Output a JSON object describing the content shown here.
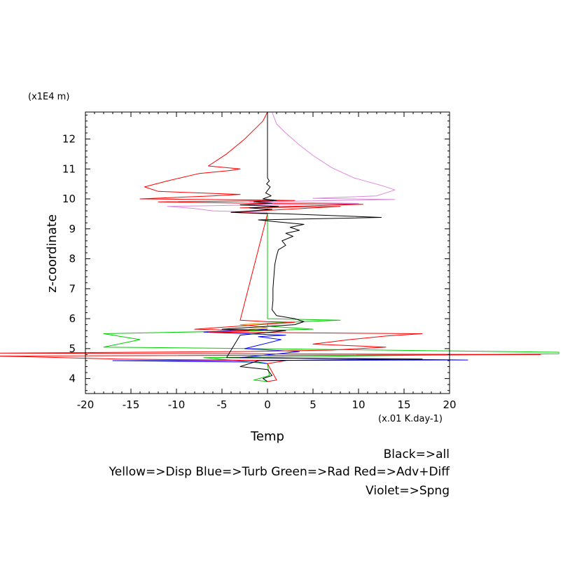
{
  "chart_data": {
    "type": "line",
    "title": "",
    "xlabel": "Temp",
    "ylabel": "z-coordinate",
    "x_unit_label": "(x.01 K.day-1)",
    "y_unit_label": "(x1E4 m)",
    "xlim": [
      -20,
      20
    ],
    "ylim": [
      3.5,
      12.9
    ],
    "x_ticks": [
      -20,
      -15,
      -10,
      -5,
      0,
      5,
      10,
      15,
      20
    ],
    "y_ticks": [
      4,
      5,
      6,
      7,
      8,
      9,
      10,
      11,
      12
    ],
    "grid": false,
    "legend_lines": [
      "Black=>all",
      "Yellow=>Disp Blue=>Turb Green=>Rad Red=>Adv+Diff",
      "Violet=>Spng"
    ],
    "series": [
      {
        "color": "#000000",
        "points": [
          [
            0,
            12.9
          ],
          [
            0,
            10.7
          ],
          [
            0.2,
            10.6
          ],
          [
            -0.1,
            10.5
          ],
          [
            0.3,
            10.4
          ],
          [
            -0.2,
            10.2
          ],
          [
            0.4,
            10.1
          ],
          [
            -0.5,
            10.0
          ],
          [
            1.0,
            9.95
          ],
          [
            -1.5,
            9.9
          ],
          [
            0.5,
            9.85
          ],
          [
            -3.0,
            9.8
          ],
          [
            1.2,
            9.75
          ],
          [
            -2.0,
            9.7
          ],
          [
            0.5,
            9.65
          ],
          [
            -4.0,
            9.55
          ],
          [
            2.0,
            9.5
          ],
          [
            12.5,
            9.38
          ],
          [
            -1.0,
            9.3
          ],
          [
            0.5,
            9.25
          ],
          [
            4.0,
            9.15
          ],
          [
            2.5,
            9.05
          ],
          [
            3.5,
            8.95
          ],
          [
            2.0,
            8.85
          ],
          [
            2.8,
            8.75
          ],
          [
            1.6,
            8.6
          ],
          [
            2.0,
            8.45
          ],
          [
            1.2,
            8.3
          ],
          [
            1.0,
            8.1
          ],
          [
            0.8,
            7.8
          ],
          [
            0.7,
            7.4
          ],
          [
            0.6,
            7.0
          ],
          [
            0.6,
            6.6
          ],
          [
            0.5,
            6.3
          ],
          [
            1.0,
            6.1
          ],
          [
            3.0,
            6.0
          ],
          [
            4.0,
            5.9
          ],
          [
            3.0,
            5.8
          ],
          [
            -5.0,
            5.65
          ],
          [
            2.0,
            5.6
          ],
          [
            -3.0,
            5.45
          ],
          [
            -4.5,
            4.7
          ],
          [
            17.0,
            4.65
          ],
          [
            -1.0,
            4.6
          ],
          [
            -3.0,
            4.4
          ],
          [
            0,
            4.3
          ],
          [
            0.5,
            4.1
          ],
          [
            -0.5,
            4.0
          ],
          [
            0,
            3.9
          ]
        ]
      },
      {
        "color": "#ff0000",
        "points": [
          [
            0,
            12.9
          ],
          [
            -0.5,
            12.6
          ],
          [
            -1.5,
            12.3
          ],
          [
            -2.5,
            12.0
          ],
          [
            -4.5,
            11.5
          ],
          [
            -6.5,
            11.1
          ],
          [
            -3.0,
            11.0
          ],
          [
            -4.0,
            10.95
          ],
          [
            -7.5,
            10.85
          ],
          [
            -11.0,
            10.6
          ],
          [
            -13.5,
            10.4
          ],
          [
            -12.0,
            10.25
          ],
          [
            -3.0,
            10.15
          ],
          [
            -6.0,
            10.1
          ],
          [
            -14.0,
            10.0
          ],
          [
            3.0,
            9.95
          ],
          [
            -12.0,
            9.9
          ],
          [
            -1.0,
            9.85
          ],
          [
            10.5,
            9.82
          ],
          [
            -3.0,
            9.7
          ],
          [
            8.0,
            9.75
          ],
          [
            -4.0,
            9.55
          ],
          [
            0,
            9.5
          ],
          [
            -3.0,
            5.95
          ],
          [
            0,
            5.9
          ],
          [
            3.0,
            5.88
          ],
          [
            -8.0,
            5.65
          ],
          [
            -2.0,
            5.6
          ],
          [
            -6.5,
            5.55
          ],
          [
            17.0,
            5.5
          ],
          [
            13.0,
            5.42
          ],
          [
            9.0,
            5.3
          ],
          [
            5.0,
            5.15
          ],
          [
            13.0,
            5.05
          ],
          [
            7.0,
            4.95
          ],
          [
            -3.0,
            4.9
          ],
          [
            -30.0,
            4.85
          ],
          [
            30.0,
            4.8
          ],
          [
            -30.0,
            4.75
          ],
          [
            -16.5,
            4.65
          ],
          [
            2.0,
            4.6
          ],
          [
            0,
            4.5
          ],
          [
            1.0,
            3.95
          ],
          [
            0,
            3.9
          ]
        ]
      },
      {
        "color": "#00cc00",
        "points": [
          [
            0,
            9.5
          ],
          [
            0,
            6.0
          ],
          [
            8.0,
            5.95
          ],
          [
            0,
            5.85
          ],
          [
            0,
            5.75
          ],
          [
            5.0,
            5.65
          ],
          [
            -1.0,
            5.6
          ],
          [
            -18.0,
            5.5
          ],
          [
            -14.0,
            5.3
          ],
          [
            -18.0,
            5.05
          ],
          [
            -1.0,
            5.0
          ],
          [
            32.0,
            4.88
          ],
          [
            32.0,
            4.83
          ],
          [
            -7.0,
            4.7
          ],
          [
            0,
            4.5
          ],
          [
            0.2,
            4.1
          ],
          [
            -1.5,
            3.95
          ],
          [
            0,
            3.9
          ]
        ]
      },
      {
        "color": "#0000ff",
        "points": [
          [
            0,
            5.65
          ],
          [
            -7.0,
            5.55
          ],
          [
            2.0,
            5.45
          ],
          [
            -1.0,
            5.4
          ],
          [
            1.5,
            5.3
          ],
          [
            -2.5,
            5.0
          ],
          [
            3.5,
            4.9
          ],
          [
            -3.0,
            4.7
          ],
          [
            22.0,
            4.62
          ],
          [
            -17.0,
            4.6
          ],
          [
            -1.0,
            4.55
          ],
          [
            0,
            4.5
          ]
        ]
      },
      {
        "color": "#cc9900",
        "points": [
          [
            0,
            5.85
          ],
          [
            -3.0,
            5.8
          ],
          [
            0,
            5.7
          ],
          [
            -2.0,
            5.65
          ],
          [
            0,
            5.6
          ]
        ]
      },
      {
        "color": "#dd88dd",
        "points": [
          [
            0.5,
            12.9
          ],
          [
            1.0,
            12.5
          ],
          [
            2.0,
            12.2
          ],
          [
            3.5,
            11.8
          ],
          [
            5.0,
            11.45
          ],
          [
            7.0,
            11.05
          ],
          [
            9.5,
            10.7
          ],
          [
            12.5,
            10.45
          ],
          [
            14.0,
            10.3
          ],
          [
            12.0,
            10.1
          ],
          [
            5.0,
            10.02
          ],
          [
            14.0,
            9.98
          ],
          [
            -2.0,
            9.9
          ],
          [
            10.0,
            9.85
          ],
          [
            -11.0,
            9.75
          ],
          [
            -8.0,
            9.68
          ],
          [
            -6.0,
            9.6
          ],
          [
            0,
            9.55
          ]
        ]
      }
    ]
  }
}
